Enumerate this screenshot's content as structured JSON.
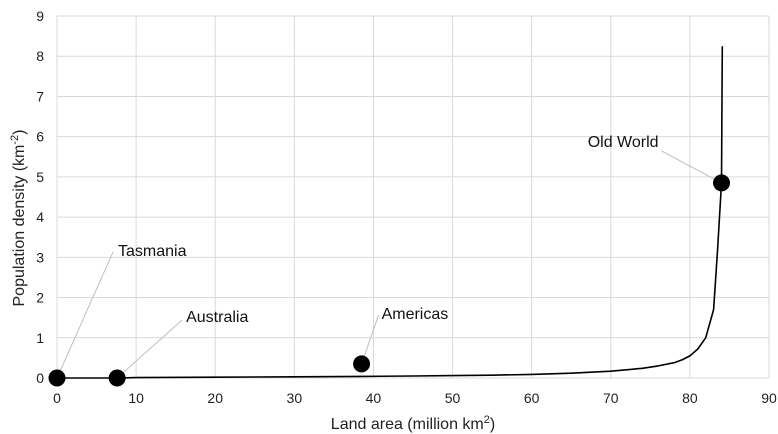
{
  "chart_data": {
    "type": "line",
    "xlabel": "Land area (million km",
    "xlabel_sup": "2",
    "xlabel_end": ")",
    "ylabel": "Population density (km",
    "ylabel_sup": "-2",
    "ylabel_end": ")",
    "xlim": [
      0,
      90
    ],
    "ylim": [
      0,
      9
    ],
    "x_ticks": [
      "0",
      "10",
      "20",
      "30",
      "40",
      "50",
      "60",
      "70",
      "80",
      "90"
    ],
    "y_ticks": [
      "0",
      "1",
      "2",
      "3",
      "4",
      "5",
      "6",
      "7",
      "8",
      "9"
    ],
    "grid": true,
    "series": [
      {
        "x": [
          0,
          7.6,
          10,
          20,
          30,
          38.5,
          45,
          50,
          55,
          60,
          65,
          70,
          74,
          76,
          78,
          79,
          80,
          81,
          82,
          83,
          83.5,
          84,
          84.1
        ],
        "y": [
          0,
          0,
          0.01,
          0.02,
          0.03,
          0.04,
          0.05,
          0.06,
          0.07,
          0.09,
          0.12,
          0.17,
          0.24,
          0.3,
          0.38,
          0.45,
          0.55,
          0.72,
          1.0,
          1.7,
          3.2,
          4.85,
          8.25
        ]
      }
    ],
    "points": [
      {
        "label": "Tasmania",
        "x": 0,
        "y": 0
      },
      {
        "label": "Australia",
        "x": 7.6,
        "y": 0
      },
      {
        "label": "Americas",
        "x": 38.5,
        "y": 0.35
      },
      {
        "label": "Old World",
        "x": 84,
        "y": 4.85
      }
    ]
  }
}
